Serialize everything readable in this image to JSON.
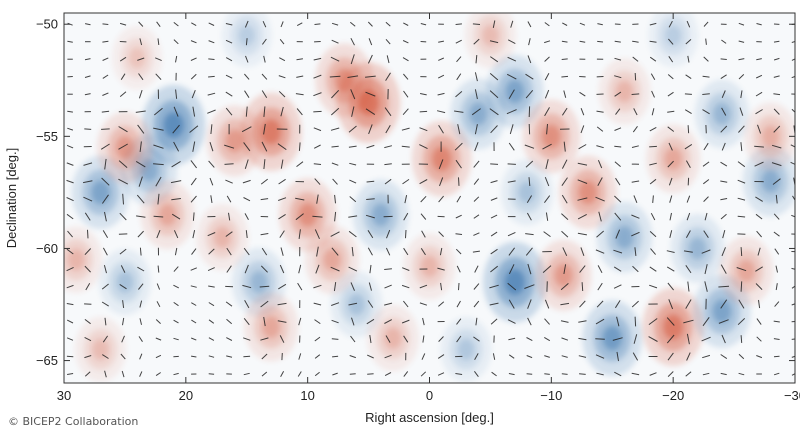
{
  "chart_data": {
    "type": "heatmap",
    "title": "",
    "xlabel": "Right ascension [deg.]",
    "ylabel": "Declination [deg.]",
    "xlim": [
      30,
      -30
    ],
    "ylim": [
      -66,
      -49.5
    ],
    "x_ticks": [
      "30",
      "20",
      "10",
      "0",
      "−10",
      "−20",
      "−30"
    ],
    "x_tick_values": [
      30,
      20,
      10,
      0,
      -10,
      -20,
      -30
    ],
    "y_ticks": [
      "−50",
      "−55",
      "−60",
      "−65"
    ],
    "y_tick_values": [
      -50,
      -55,
      -60,
      -65
    ],
    "colors": {
      "positive": "#d2492a",
      "negative": "#2b6aa8",
      "sticks": "#222222"
    },
    "blobs": [
      {
        "ra": 5,
        "dec": -53.5,
        "amp": 1.0
      },
      {
        "ra": 7,
        "dec": -52.5,
        "amp": 0.7
      },
      {
        "ra": 13,
        "dec": -54.8,
        "amp": 0.9
      },
      {
        "ra": 16,
        "dec": -55.2,
        "amp": 0.6
      },
      {
        "ra": 21,
        "dec": -54.5,
        "amp": -1.0
      },
      {
        "ra": 23,
        "dec": -56.5,
        "amp": -0.6
      },
      {
        "ra": 27,
        "dec": -57.5,
        "amp": -0.7
      },
      {
        "ra": 25,
        "dec": -55.5,
        "amp": 0.6
      },
      {
        "ra": 21.5,
        "dec": -58.5,
        "amp": 0.5
      },
      {
        "ra": 10,
        "dec": -58.5,
        "amp": 0.7
      },
      {
        "ra": 8,
        "dec": -60.5,
        "amp": 0.5
      },
      {
        "ra": 4,
        "dec": -58.5,
        "amp": -0.6
      },
      {
        "ra": 17,
        "dec": -59.5,
        "amp": 0.4
      },
      {
        "ra": 14,
        "dec": -61.5,
        "amp": -0.5
      },
      {
        "ra": 13,
        "dec": -63.5,
        "amp": 0.5
      },
      {
        "ra": 6,
        "dec": -62.5,
        "amp": -0.4
      },
      {
        "ra": 25,
        "dec": -61.5,
        "amp": -0.4
      },
      {
        "ra": 27,
        "dec": -64.5,
        "amp": 0.35
      },
      {
        "ra": 29,
        "dec": -60.5,
        "amp": 0.4
      },
      {
        "ra": -1,
        "dec": -56,
        "amp": 0.8
      },
      {
        "ra": -4,
        "dec": -54,
        "amp": -0.6
      },
      {
        "ra": -7,
        "dec": -53,
        "amp": -0.7
      },
      {
        "ra": -10,
        "dec": -55,
        "amp": 0.7
      },
      {
        "ra": -8,
        "dec": -57.5,
        "amp": -0.4
      },
      {
        "ra": -13,
        "dec": -57.5,
        "amp": 0.7
      },
      {
        "ra": -16,
        "dec": -59.5,
        "amp": -0.6
      },
      {
        "ra": -7,
        "dec": -61.5,
        "amp": -1.0
      },
      {
        "ra": -11,
        "dec": -61.2,
        "amp": 0.6
      },
      {
        "ra": 0,
        "dec": -60.8,
        "amp": 0.4
      },
      {
        "ra": 3,
        "dec": -64,
        "amp": 0.4
      },
      {
        "ra": -3,
        "dec": -64.5,
        "amp": -0.35
      },
      {
        "ra": -15,
        "dec": -64,
        "amp": -0.8
      },
      {
        "ra": -20,
        "dec": -63.5,
        "amp": 0.9
      },
      {
        "ra": -24,
        "dec": -62.8,
        "amp": -0.7
      },
      {
        "ra": -22,
        "dec": -60,
        "amp": -0.5
      },
      {
        "ra": -26,
        "dec": -61,
        "amp": 0.5
      },
      {
        "ra": -20,
        "dec": -56,
        "amp": 0.5
      },
      {
        "ra": -24,
        "dec": -54,
        "amp": -0.5
      },
      {
        "ra": -28,
        "dec": -57,
        "amp": -0.6
      },
      {
        "ra": -28,
        "dec": -55,
        "amp": 0.45
      },
      {
        "ra": -16,
        "dec": -53,
        "amp": 0.4
      },
      {
        "ra": -5,
        "dec": -50.5,
        "amp": 0.35
      },
      {
        "ra": 15,
        "dec": -50.5,
        "amp": -0.3
      },
      {
        "ra": -20,
        "dec": -50.5,
        "amp": -0.3
      },
      {
        "ra": 24,
        "dec": -51.5,
        "amp": 0.3
      }
    ]
  },
  "credit": "© BICEP2 Collaboration"
}
